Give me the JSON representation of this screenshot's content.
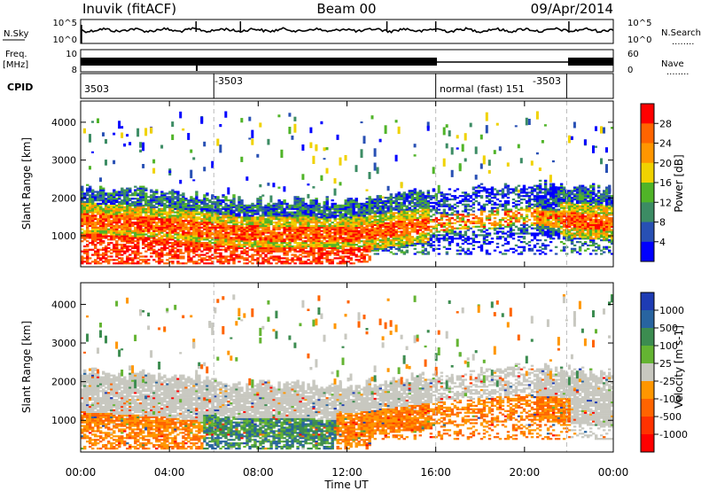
{
  "header": {
    "station": "Inuvik (fitACF)",
    "beam": "Beam 00",
    "date": "09/Apr/2014"
  },
  "top_panels": {
    "nsky_label": "N.Sky",
    "nsky_ticks": [
      "10^5",
      "10^0"
    ],
    "nsearch_label": "N.Search",
    "nsearch_ticks": [
      "10^5",
      "10^0"
    ],
    "freq_label_1": "Freq.",
    "freq_label_2": "[MHz]",
    "freq_ticks": [
      "10",
      "8"
    ],
    "nave_label": "Nave",
    "nave_ticks": [
      "60",
      "0"
    ],
    "cpid_label": "CPID",
    "cpid_annotations": [
      {
        "text": "3503",
        "time_h": 0.05
      },
      {
        "text": "-3503",
        "time_h": 6.0
      },
      {
        "text": "normal (fast) 151",
        "time_h": 16.05
      },
      {
        "text": "-3503",
        "time_h": 21.9
      }
    ],
    "cpid_change_times_h": [
      6.0,
      16.0,
      21.9
    ],
    "dotted_marker": "........"
  },
  "chart_data": [
    {
      "type": "heatmap",
      "title": "Power",
      "xlabel": "",
      "ylabel": "Slant Range [km]",
      "xlim": [
        0,
        24
      ],
      "ylim": [
        180,
        4560
      ],
      "y_ticks": [
        1000,
        2000,
        3000,
        4000
      ],
      "colorbar_label": "Power [dB]",
      "colorbar_ticks": [
        "4",
        "8",
        "12",
        "16",
        "20",
        "24",
        "28"
      ],
      "colors": [
        "#0000ff",
        "#2850b4",
        "#3c8c64",
        "#50b428",
        "#f0d200",
        "#ff9600",
        "#ff6400",
        "#ff0000"
      ],
      "echo_band_centers_km": [
        {
          "time_h": 0,
          "range_km": 1400
        },
        {
          "time_h": 4,
          "range_km": 1250
        },
        {
          "time_h": 7,
          "range_km": 1050
        },
        {
          "time_h": 12,
          "range_km": 1000
        },
        {
          "time_h": 16,
          "range_km": 1300
        },
        {
          "time_h": 20,
          "range_km": 1500
        },
        {
          "time_h": 24,
          "range_km": 1300
        }
      ]
    },
    {
      "type": "heatmap",
      "title": "Velocity",
      "xlabel": "Time UT",
      "ylabel": "Slant Range [km]",
      "xlim": [
        0,
        24
      ],
      "ylim": [
        180,
        4560
      ],
      "x_ticks": [
        "00:00",
        "04:00",
        "08:00",
        "12:00",
        "16:00",
        "20:00",
        "00:00"
      ],
      "y_ticks": [
        1000,
        2000,
        3000,
        4000
      ],
      "colorbar_label": "Velocity [m s-1]",
      "colorbar_ticks": [
        "1000",
        "500",
        "100",
        "25",
        "-25",
        "-100",
        "-500",
        "-1000"
      ],
      "colors": [
        "#1e3cb4",
        "#2864a0",
        "#3c8c50",
        "#64b432",
        "#c8c8c0",
        "#ff9600",
        "#ff6400",
        "#ff3200",
        "#ff0000"
      ]
    }
  ]
}
